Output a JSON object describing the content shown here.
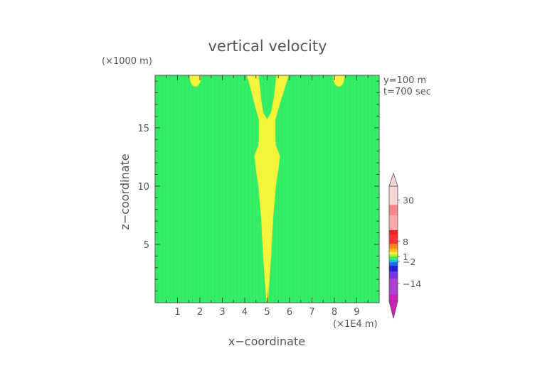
{
  "chart_data": {
    "type": "heatmap",
    "title": "vertical velocity",
    "xlabel": "x−coordinate",
    "ylabel": "z−coordinate",
    "x_unit": "(×1E4 m)",
    "y_unit": "(×1000 m)",
    "annotations": [
      "y=100  m",
      "t=700  sec"
    ],
    "xlim": [
      0,
      10
    ],
    "ylim": [
      0,
      19.5
    ],
    "x_ticks": [
      1,
      2,
      3,
      4,
      5,
      6,
      7,
      8,
      9
    ],
    "y_ticks": [
      5,
      10,
      15
    ],
    "background_color": "#33ee66",
    "feature_color": "#f4f43c",
    "plume_core": [
      {
        "z": 0.0,
        "half_width": 0.02
      },
      {
        "z": 1.5,
        "half_width": 0.08
      },
      {
        "z": 4.0,
        "half_width": 0.17
      },
      {
        "z": 7.0,
        "half_width": 0.25
      },
      {
        "z": 10.0,
        "half_width": 0.38
      },
      {
        "z": 11.5,
        "half_width": 0.5
      },
      {
        "z": 12.6,
        "half_width": 0.56
      },
      {
        "z": 13.5,
        "half_width": 0.38
      },
      {
        "z": 14.0,
        "half_width": 0.36
      },
      {
        "z": 15.8,
        "half_width": 0.36
      }
    ],
    "plume_arms": [
      {
        "z": 15.8,
        "outer_left": 4.62,
        "outer_right": 5.38
      },
      {
        "z": 17.0,
        "outer_left": 4.45,
        "outer_right": 5.55
      },
      {
        "z": 18.5,
        "outer_left": 4.25,
        "outer_right": 5.8
      },
      {
        "z": 19.5,
        "outer_left": 4.1,
        "outer_right": 5.95
      }
    ],
    "plume_notch": [
      {
        "z": 15.7,
        "left": 5.0,
        "right": 5.0
      },
      {
        "z": 16.3,
        "left": 4.82,
        "right": 5.18
      },
      {
        "z": 17.5,
        "left": 4.72,
        "right": 5.3
      },
      {
        "z": 19.5,
        "left": 4.62,
        "right": 5.42
      }
    ],
    "side_blobs": [
      {
        "x_center": 1.8,
        "half_width": 0.25,
        "z_bottom": 18.1
      },
      {
        "x_center": 8.2,
        "half_width": 0.25,
        "z_bottom": 18.1
      }
    ],
    "colorbar": {
      "labels": [
        {
          "value": "30",
          "level": 0.88
        },
        {
          "value": "8",
          "level": 0.52
        },
        {
          "value": "1",
          "level": 0.39
        },
        {
          "value": "−2",
          "level": 0.345
        },
        {
          "value": "−14",
          "level": 0.155
        }
      ],
      "segments": [
        {
          "from": 0.0,
          "to": 0.06,
          "color": "#cc22bb"
        },
        {
          "from": 0.06,
          "to": 0.2,
          "color": "#aa44cc"
        },
        {
          "from": 0.2,
          "to": 0.26,
          "color": "#7733dd"
        },
        {
          "from": 0.26,
          "to": 0.31,
          "color": "#2222dd"
        },
        {
          "from": 0.31,
          "to": 0.34,
          "color": "#2266ee"
        },
        {
          "from": 0.34,
          "to": 0.36,
          "color": "#22bbee"
        },
        {
          "from": 0.36,
          "to": 0.39,
          "color": "#33ee66"
        },
        {
          "from": 0.39,
          "to": 0.41,
          "color": "#bbee33"
        },
        {
          "from": 0.41,
          "to": 0.43,
          "color": "#f4f43c"
        },
        {
          "from": 0.43,
          "to": 0.46,
          "color": "#ffbb22"
        },
        {
          "from": 0.46,
          "to": 0.5,
          "color": "#ff8822"
        },
        {
          "from": 0.5,
          "to": 0.58,
          "color": "#ff3333"
        },
        {
          "from": 0.58,
          "to": 0.62,
          "color": "#ee2222"
        },
        {
          "from": 0.62,
          "to": 0.75,
          "color": "#ffaaaa"
        },
        {
          "from": 0.75,
          "to": 0.84,
          "color": "#f28888"
        },
        {
          "from": 0.84,
          "to": 1.0,
          "color": "#f8d6d4"
        }
      ],
      "top_color": "#f8d6d4",
      "bottom_color": "#cc22bb"
    }
  }
}
